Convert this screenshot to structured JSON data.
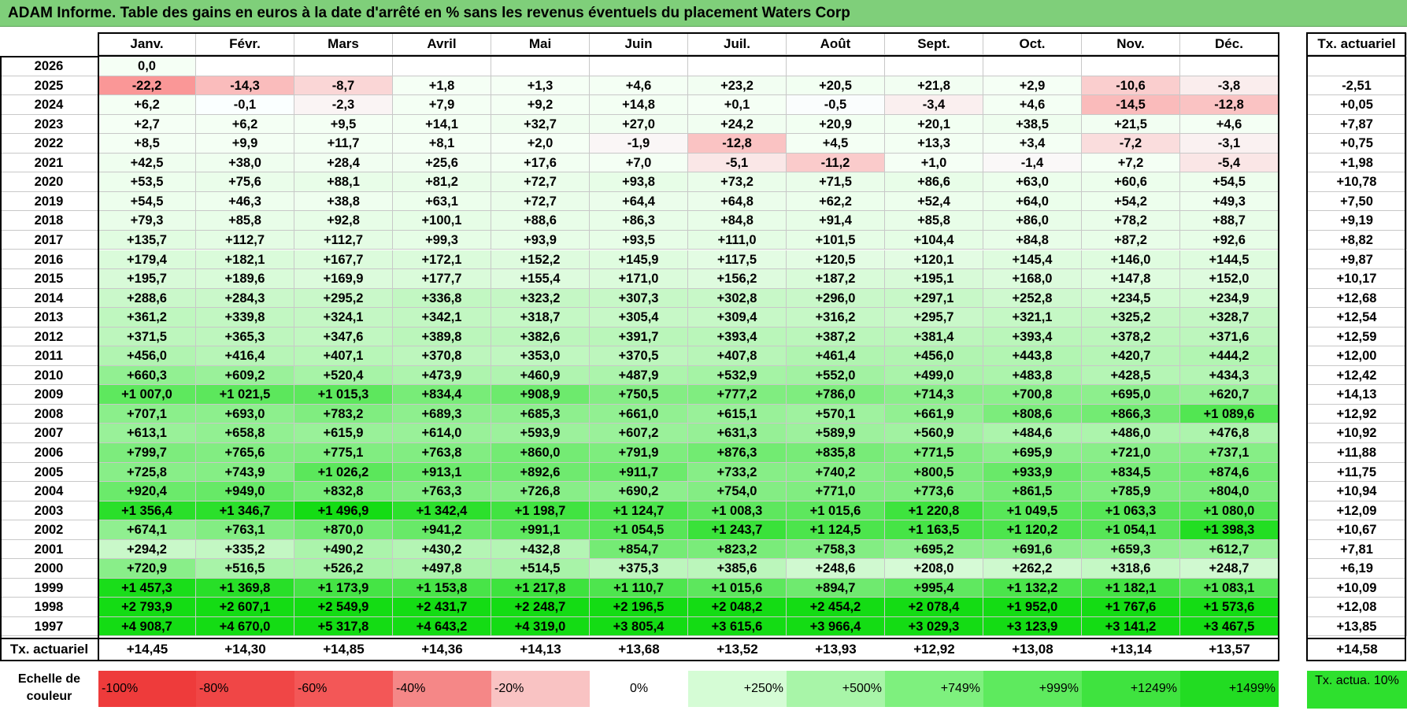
{
  "title": "ADAM Informe. Table des gains en euros à la date d'arrêté en % sans les revenus éventuels du placement Waters Corp",
  "months": [
    "Janv.",
    "Févr.",
    "Mars",
    "Avril",
    "Mai",
    "Juin",
    "Juil.",
    "Août",
    "Sept.",
    "Oct.",
    "Nov.",
    "Déc."
  ],
  "tx_header": "Tx. actuariel",
  "rows": [
    {
      "year": "2026",
      "values": [
        "0,0",
        "",
        "",
        "",
        "",
        "",
        "",
        "",
        "",
        "",
        "",
        ""
      ],
      "tx": ""
    },
    {
      "year": "2025",
      "values": [
        "-22,2",
        "-14,3",
        "-8,7",
        "+1,8",
        "+1,3",
        "+4,6",
        "+23,2",
        "+20,5",
        "+21,8",
        "+2,9",
        "-10,6",
        "-3,8"
      ],
      "tx": "-2,51"
    },
    {
      "year": "2024",
      "values": [
        "+6,2",
        "-0,1",
        "-2,3",
        "+7,9",
        "+9,2",
        "+14,8",
        "+0,1",
        "-0,5",
        "-3,4",
        "+4,6",
        "-14,5",
        "-12,8"
      ],
      "tx": "+0,05"
    },
    {
      "year": "2023",
      "values": [
        "+2,7",
        "+6,2",
        "+9,5",
        "+14,1",
        "+32,7",
        "+27,0",
        "+24,2",
        "+20,9",
        "+20,1",
        "+38,5",
        "+21,5",
        "+4,6"
      ],
      "tx": "+7,87"
    },
    {
      "year": "2022",
      "values": [
        "+8,5",
        "+9,9",
        "+11,7",
        "+8,1",
        "+2,0",
        "-1,9",
        "-12,8",
        "+4,5",
        "+13,3",
        "+3,4",
        "-7,2",
        "-3,1"
      ],
      "tx": "+0,75"
    },
    {
      "year": "2021",
      "values": [
        "+42,5",
        "+38,0",
        "+28,4",
        "+25,6",
        "+17,6",
        "+7,0",
        "-5,1",
        "-11,2",
        "+1,0",
        "-1,4",
        "+7,2",
        "-5,4"
      ],
      "tx": "+1,98"
    },
    {
      "year": "2020",
      "values": [
        "+53,5",
        "+75,6",
        "+88,1",
        "+81,2",
        "+72,7",
        "+93,8",
        "+73,2",
        "+71,5",
        "+86,6",
        "+63,0",
        "+60,6",
        "+54,5"
      ],
      "tx": "+10,78"
    },
    {
      "year": "2019",
      "values": [
        "+54,5",
        "+46,3",
        "+38,8",
        "+63,1",
        "+72,7",
        "+64,4",
        "+64,8",
        "+62,2",
        "+52,4",
        "+64,0",
        "+54,2",
        "+49,3"
      ],
      "tx": "+7,50"
    },
    {
      "year": "2018",
      "values": [
        "+79,3",
        "+85,8",
        "+92,8",
        "+100,1",
        "+88,6",
        "+86,3",
        "+84,8",
        "+91,4",
        "+85,8",
        "+86,0",
        "+78,2",
        "+88,7"
      ],
      "tx": "+9,19"
    },
    {
      "year": "2017",
      "values": [
        "+135,7",
        "+112,7",
        "+112,7",
        "+99,3",
        "+93,9",
        "+93,5",
        "+111,0",
        "+101,5",
        "+104,4",
        "+84,8",
        "+87,2",
        "+92,6"
      ],
      "tx": "+8,82"
    },
    {
      "year": "2016",
      "values": [
        "+179,4",
        "+182,1",
        "+167,7",
        "+172,1",
        "+152,2",
        "+145,9",
        "+117,5",
        "+120,5",
        "+120,1",
        "+145,4",
        "+146,0",
        "+144,5"
      ],
      "tx": "+9,87"
    },
    {
      "year": "2015",
      "values": [
        "+195,7",
        "+189,6",
        "+169,9",
        "+177,7",
        "+155,4",
        "+171,0",
        "+156,2",
        "+187,2",
        "+195,1",
        "+168,0",
        "+147,8",
        "+152,0"
      ],
      "tx": "+10,17"
    },
    {
      "year": "2014",
      "values": [
        "+288,6",
        "+284,3",
        "+295,2",
        "+336,8",
        "+323,2",
        "+307,3",
        "+302,8",
        "+296,0",
        "+297,1",
        "+252,8",
        "+234,5",
        "+234,9"
      ],
      "tx": "+12,68"
    },
    {
      "year": "2013",
      "values": [
        "+361,2",
        "+339,8",
        "+324,1",
        "+342,1",
        "+318,7",
        "+305,4",
        "+309,4",
        "+316,2",
        "+295,7",
        "+321,1",
        "+325,2",
        "+328,7"
      ],
      "tx": "+12,54"
    },
    {
      "year": "2012",
      "values": [
        "+371,5",
        "+365,3",
        "+347,6",
        "+389,8",
        "+382,6",
        "+391,7",
        "+393,4",
        "+387,2",
        "+381,4",
        "+393,4",
        "+378,2",
        "+371,6"
      ],
      "tx": "+12,59"
    },
    {
      "year": "2011",
      "values": [
        "+456,0",
        "+416,4",
        "+407,1",
        "+370,8",
        "+353,0",
        "+370,5",
        "+407,8",
        "+461,4",
        "+456,0",
        "+443,8",
        "+420,7",
        "+444,2"
      ],
      "tx": "+12,00"
    },
    {
      "year": "2010",
      "values": [
        "+660,3",
        "+609,2",
        "+520,4",
        "+473,9",
        "+460,9",
        "+487,9",
        "+532,9",
        "+552,0",
        "+499,0",
        "+483,8",
        "+428,5",
        "+434,3"
      ],
      "tx": "+12,42"
    },
    {
      "year": "2009",
      "values": [
        "+1 007,0",
        "+1 021,5",
        "+1 015,3",
        "+834,4",
        "+908,9",
        "+750,5",
        "+777,2",
        "+786,0",
        "+714,3",
        "+700,8",
        "+695,0",
        "+620,7"
      ],
      "tx": "+14,13"
    },
    {
      "year": "2008",
      "values": [
        "+707,1",
        "+693,0",
        "+783,2",
        "+689,3",
        "+685,3",
        "+661,0",
        "+615,1",
        "+570,1",
        "+661,9",
        "+808,6",
        "+866,3",
        "+1 089,6"
      ],
      "tx": "+12,92"
    },
    {
      "year": "2007",
      "values": [
        "+613,1",
        "+658,8",
        "+615,9",
        "+614,0",
        "+593,9",
        "+607,2",
        "+631,3",
        "+589,9",
        "+560,9",
        "+484,6",
        "+486,0",
        "+476,8"
      ],
      "tx": "+10,92"
    },
    {
      "year": "2006",
      "values": [
        "+799,7",
        "+765,6",
        "+775,1",
        "+763,8",
        "+860,0",
        "+791,9",
        "+876,3",
        "+835,8",
        "+771,5",
        "+695,9",
        "+721,0",
        "+737,1"
      ],
      "tx": "+11,88"
    },
    {
      "year": "2005",
      "values": [
        "+725,8",
        "+743,9",
        "+1 026,2",
        "+913,1",
        "+892,6",
        "+911,7",
        "+733,2",
        "+740,2",
        "+800,5",
        "+933,9",
        "+834,5",
        "+874,6"
      ],
      "tx": "+11,75"
    },
    {
      "year": "2004",
      "values": [
        "+920,4",
        "+949,0",
        "+832,8",
        "+763,3",
        "+726,8",
        "+690,2",
        "+754,0",
        "+771,0",
        "+773,6",
        "+861,5",
        "+785,9",
        "+804,0"
      ],
      "tx": "+10,94"
    },
    {
      "year": "2003",
      "values": [
        "+1 356,4",
        "+1 346,7",
        "+1 496,9",
        "+1 342,4",
        "+1 198,7",
        "+1 124,7",
        "+1 008,3",
        "+1 015,6",
        "+1 220,8",
        "+1 049,5",
        "+1 063,3",
        "+1 080,0"
      ],
      "tx": "+12,09"
    },
    {
      "year": "2002",
      "values": [
        "+674,1",
        "+763,1",
        "+870,0",
        "+941,2",
        "+991,1",
        "+1 054,5",
        "+1 243,7",
        "+1 124,5",
        "+1 163,5",
        "+1 120,2",
        "+1 054,1",
        "+1 398,3"
      ],
      "tx": "+10,67"
    },
    {
      "year": "2001",
      "values": [
        "+294,2",
        "+335,2",
        "+490,2",
        "+430,2",
        "+432,8",
        "+854,7",
        "+823,2",
        "+758,3",
        "+695,2",
        "+691,6",
        "+659,3",
        "+612,7"
      ],
      "tx": "+7,81"
    },
    {
      "year": "2000",
      "values": [
        "+720,9",
        "+516,5",
        "+526,2",
        "+497,8",
        "+514,5",
        "+375,3",
        "+385,6",
        "+248,6",
        "+208,0",
        "+262,2",
        "+318,6",
        "+248,7"
      ],
      "tx": "+6,19"
    },
    {
      "year": "1999",
      "values": [
        "+1 457,3",
        "+1 369,8",
        "+1 173,9",
        "+1 153,8",
        "+1 217,8",
        "+1 110,7",
        "+1 015,6",
        "+894,7",
        "+995,4",
        "+1 132,2",
        "+1 182,1",
        "+1 083,1"
      ],
      "tx": "+10,09"
    },
    {
      "year": "1998",
      "values": [
        "+2 793,9",
        "+2 607,1",
        "+2 549,9",
        "+2 431,7",
        "+2 248,7",
        "+2 196,5",
        "+2 048,2",
        "+2 454,2",
        "+2 078,4",
        "+1 952,0",
        "+1 767,6",
        "+1 573,6"
      ],
      "tx": "+12,08"
    },
    {
      "year": "1997",
      "values": [
        "+4 908,7",
        "+4 670,0",
        "+5 317,8",
        "+4 643,2",
        "+4 319,0",
        "+3 805,4",
        "+3 615,6",
        "+3 966,4",
        "+3 029,3",
        "+3 123,9",
        "+3 141,2",
        "+3 467,5"
      ],
      "tx": "+13,85"
    }
  ],
  "footer": {
    "label": "Tx. actuariel",
    "values": [
      "+14,45",
      "+14,30",
      "+14,85",
      "+14,36",
      "+14,13",
      "+13,68",
      "+13,52",
      "+13,93",
      "+12,92",
      "+13,08",
      "+13,14",
      "+13,57"
    ],
    "total": "+14,58"
  },
  "legend": {
    "label": "Echelle de couleur",
    "scale": [
      {
        "text": "-100%",
        "color": "#ee3b3b",
        "align": "left"
      },
      {
        "text": "-80%",
        "color": "#f04646",
        "align": "left"
      },
      {
        "text": "-60%",
        "color": "#f35757",
        "align": "left"
      },
      {
        "text": "-40%",
        "color": "#f58787",
        "align": "left"
      },
      {
        "text": "-20%",
        "color": "#f9c3c3",
        "align": "left"
      },
      {
        "text": "0%",
        "color": "#ffffff",
        "align": "center"
      },
      {
        "text": "+250%",
        "color": "#d5fcd5",
        "align": "right"
      },
      {
        "text": "+500%",
        "color": "#a8f5a8",
        "align": "right"
      },
      {
        "text": "+749%",
        "color": "#7ef07e",
        "align": "right"
      },
      {
        "text": "+999%",
        "color": "#5eea5e",
        "align": "right"
      },
      {
        "text": "+1249%",
        "color": "#3fe33f",
        "align": "right"
      },
      {
        "text": "+1499%",
        "color": "#22dc22",
        "align": "right"
      }
    ],
    "tx_label": "Tx. actua. 10%",
    "tx_color": "#2ee02e"
  }
}
